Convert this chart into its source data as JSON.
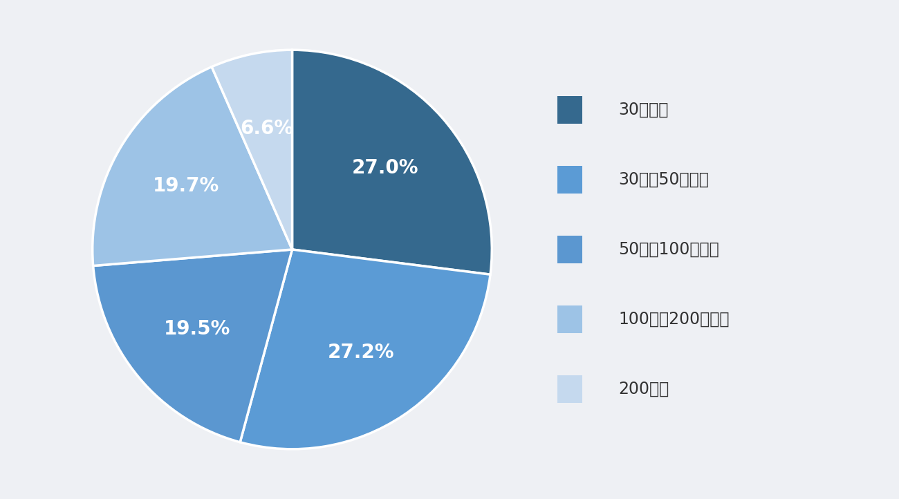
{
  "slices": [
    27.0,
    27.2,
    19.5,
    19.7,
    6.6
  ],
  "labels": [
    "27.0%",
    "27.2%",
    "19.5%",
    "19.7%",
    "6.6%"
  ],
  "legend_labels": [
    "30万未満",
    "30万〜50万未満",
    "50万〜100万未満",
    "100万〜200万未満",
    "200万〜"
  ],
  "colors": [
    "#35698e",
    "#5b9bd5",
    "#5b97d0",
    "#9dc3e6",
    "#c5d9ee"
  ],
  "background_color": "#eef0f4",
  "text_color_white": "#ffffff",
  "text_color_dark": "#333333",
  "startangle": 90,
  "wedge_linewidth": 2.5,
  "wedge_linecolor": "#ffffff",
  "label_fontsize": 20,
  "legend_fontsize": 17
}
